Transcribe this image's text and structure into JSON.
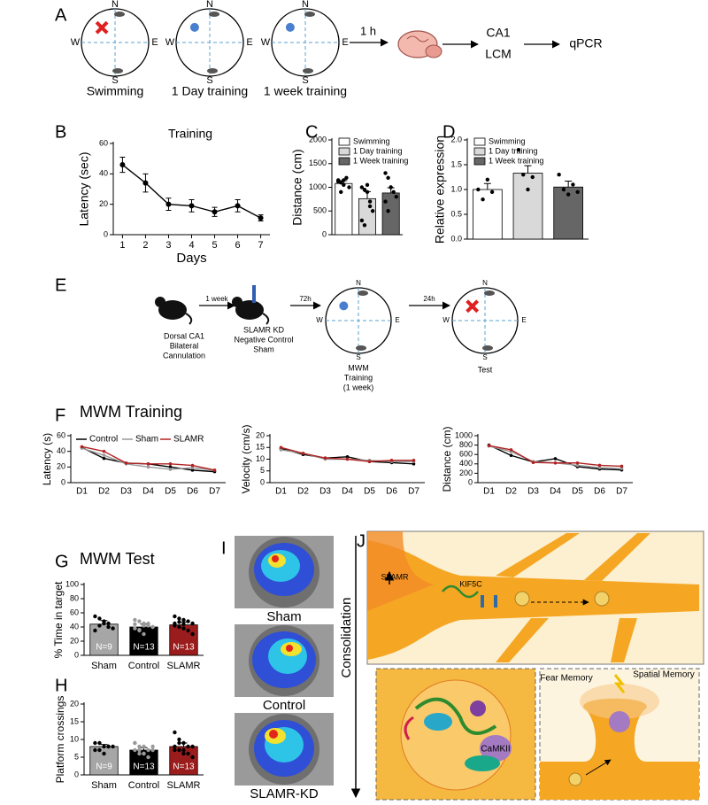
{
  "panel_labels": [
    "A",
    "B",
    "C",
    "D",
    "E",
    "F",
    "G",
    "H",
    "I",
    "J"
  ],
  "schematic": {
    "compass": [
      "N",
      "S",
      "W",
      "E"
    ],
    "mazes": [
      "Swimming",
      "1 Day training",
      "1 week training"
    ],
    "delay": "1 h",
    "steps": [
      "CA1",
      "LCM",
      "qPCR"
    ]
  },
  "protocol": {
    "surgery": [
      "Dorsal CA1",
      "Bilateral",
      "Cannulation"
    ],
    "groups": [
      "SLAMR KD",
      "Negative Control",
      "Sham"
    ],
    "training": [
      "MWM",
      "Training",
      "(1 week)"
    ],
    "test": "Test",
    "intervals": [
      "1 week",
      "72h",
      "24h"
    ]
  },
  "heatmaps": [
    "Sham",
    "Control",
    "SLAMR-KD"
  ],
  "model": {
    "axis": "Consolidation",
    "labels": [
      "SLAMR",
      "KIF5C",
      "CaMKII",
      "Fear Memory",
      "Spatial Memory"
    ]
  },
  "chart_data": [
    {
      "type": "line",
      "title": "Training",
      "xlabel": "Days",
      "ylabel": "Latency (sec)",
      "x": [
        1,
        2,
        3,
        4,
        5,
        6,
        7
      ],
      "values": [
        46,
        34,
        20,
        19,
        15,
        19,
        11
      ],
      "errors": [
        5,
        6,
        4,
        4,
        3,
        4,
        2
      ],
      "color": "#000000",
      "xlim": [
        0.6,
        7.4
      ],
      "xticks": [
        1,
        2,
        3,
        4,
        5,
        6,
        7
      ],
      "ylim": [
        0,
        60
      ],
      "yticks": [
        0,
        20,
        40,
        60
      ]
    },
    {
      "type": "bar",
      "ylabel": "Distance (cm)",
      "categories": [
        null
      ],
      "series": [
        {
          "name": "Swimming",
          "color": "#ffffff",
          "values": [
            1080
          ],
          "errors": [
            60
          ],
          "points": [
            [
              1150,
              1100,
              1050,
              1200,
              1000,
              1120,
              900,
              1150
            ]
          ]
        },
        {
          "name": "1 Day training",
          "color": "#d9d9d9",
          "values": [
            760
          ],
          "errors": [
            150
          ],
          "points": [
            [
              1000,
              950,
              900,
              600,
              500,
              300,
              200,
              1050,
              700
            ]
          ]
        },
        {
          "name": "1 Week training",
          "color": "#666666",
          "values": [
            880
          ],
          "errors": [
            110
          ],
          "points": [
            [
              1300,
              1200,
              1000,
              900,
              800,
              700,
              500,
              1000
            ]
          ]
        }
      ],
      "point_color": "#000000",
      "ylim": [
        0,
        2000
      ],
      "yticks": [
        0,
        500,
        1000,
        1500,
        2000
      ]
    },
    {
      "type": "bar",
      "ylabel": "Relative expression",
      "categories": [
        null
      ],
      "series": [
        {
          "name": "Swimming",
          "color": "#ffffff",
          "values": [
            1.0
          ],
          "errors": [
            0.12
          ],
          "points": [
            [
              1.0,
              0.8,
              1.2,
              0.95
            ]
          ]
        },
        {
          "name": "1 Day training",
          "color": "#d9d9d9",
          "values": [
            1.33
          ],
          "errors": [
            0.15
          ],
          "points": [
            [
              1.8,
              1.3,
              1.0,
              1.25
            ]
          ]
        },
        {
          "name": "1 Week training",
          "color": "#666666",
          "values": [
            1.05
          ],
          "errors": [
            0.12
          ],
          "points": [
            [
              1.3,
              1.0,
              0.9,
              1.1,
              0.95
            ]
          ]
        }
      ],
      "point_color": "#000000",
      "ylim": [
        0,
        2
      ],
      "yticks": [
        {
          "value": 0,
          "label": "0.0"
        },
        {
          "value": 0.5,
          "label": "0.5"
        },
        {
          "value": 1,
          "label": "1.0"
        },
        {
          "value": 1.5,
          "label": "1.5"
        },
        {
          "value": 2,
          "label": "2.0"
        }
      ]
    },
    {
      "type": "line",
      "title": "MWM Training",
      "ylabel": "Latency (s)",
      "categories": [
        "D1",
        "D2",
        "D3",
        "D4",
        "D5",
        "D6",
        "D7"
      ],
      "series": [
        {
          "name": "Control",
          "color": "#000000",
          "values": [
            45,
            31,
            25,
            24,
            20,
            16,
            14
          ]
        },
        {
          "name": "Sham",
          "color": "#999999",
          "values": [
            44,
            35,
            24,
            20,
            17,
            19,
            16
          ]
        },
        {
          "name": "SLAMR",
          "color": "#b22222",
          "values": [
            46,
            40,
            25,
            24,
            24,
            22,
            16
          ]
        }
      ],
      "legend": "top",
      "ylim": [
        0,
        60
      ],
      "yticks": [
        0,
        20,
        40,
        60
      ]
    },
    {
      "type": "line",
      "ylabel": "Velocity (cm/s)",
      "categories": [
        "D1",
        "D2",
        "D3",
        "D4",
        "D5",
        "D6",
        "D7"
      ],
      "series": [
        {
          "name": "Control",
          "color": "#000000",
          "values": [
            14.5,
            12,
            10.5,
            11,
            9,
            8.5,
            8
          ]
        },
        {
          "name": "Sham",
          "color": "#999999",
          "values": [
            14,
            12.5,
            10,
            10,
            9.5,
            9,
            9
          ]
        },
        {
          "name": "SLAMR",
          "color": "#b22222",
          "values": [
            15,
            12.5,
            10.5,
            10,
            9,
            9.5,
            9.5
          ]
        }
      ],
      "ylim": [
        0,
        20
      ],
      "yticks": [
        0,
        5,
        10,
        15,
        20
      ]
    },
    {
      "type": "line",
      "ylabel": "Distance (cm)",
      "categories": [
        "D1",
        "D2",
        "D3",
        "D4",
        "D5",
        "D6",
        "D7"
      ],
      "series": [
        {
          "name": "Control",
          "color": "#000000",
          "values": [
            800,
            580,
            440,
            510,
            340,
            290,
            270
          ]
        },
        {
          "name": "Sham",
          "color": "#999999",
          "values": [
            780,
            660,
            450,
            420,
            370,
            320,
            300
          ]
        },
        {
          "name": "SLAMR",
          "color": "#b22222",
          "values": [
            790,
            700,
            430,
            420,
            420,
            370,
            350
          ]
        }
      ],
      "ylim": [
        0,
        1000
      ],
      "yticks": [
        0,
        200,
        400,
        600,
        800,
        1000
      ]
    },
    {
      "type": "bar",
      "title": "MWM Test",
      "ylabel": "% Time in target",
      "categories": [
        "Sham",
        "Control",
        "SLAMR"
      ],
      "colors": [
        "#a6a6a6",
        "#000000",
        "#9b1c1c"
      ],
      "point_colors": [
        "#000000",
        "#999999",
        "#000000"
      ],
      "values": [
        44,
        40,
        43
      ],
      "errors": [
        5,
        4,
        4
      ],
      "annotations": [
        "N=9",
        "N=13",
        "N=13"
      ],
      "points": [
        [
          55,
          52,
          45,
          40,
          38,
          35,
          42,
          48,
          45
        ],
        [
          50,
          48,
          45,
          42,
          40,
          38,
          35,
          30,
          45,
          40,
          44,
          36,
          42
        ],
        [
          55,
          52,
          50,
          48,
          45,
          42,
          40,
          38,
          35,
          30,
          45,
          47,
          44
        ]
      ],
      "ylim": [
        0,
        100
      ],
      "yticks": [
        0,
        20,
        40,
        60,
        80,
        100
      ]
    },
    {
      "type": "bar",
      "ylabel": "Platform crossings",
      "categories": [
        "Sham",
        "Control",
        "SLAMR"
      ],
      "colors": [
        "#a6a6a6",
        "#000000",
        "#9b1c1c"
      ],
      "point_colors": [
        "#000000",
        "#999999",
        "#000000"
      ],
      "values": [
        8,
        7,
        8
      ],
      "errors": [
        0.6,
        0.7,
        1
      ],
      "annotations": [
        "N=9",
        "N=13",
        "N=13"
      ],
      "points": [
        [
          9,
          9,
          8,
          8,
          8,
          7,
          7,
          6,
          8
        ],
        [
          9,
          8,
          8,
          7,
          7,
          7,
          6,
          6,
          5,
          8,
          9,
          7,
          6
        ],
        [
          12,
          10,
          9,
          8,
          8,
          7,
          7,
          6,
          6,
          5,
          8,
          9,
          7
        ]
      ],
      "ylim": [
        0,
        20
      ],
      "yticks": [
        0,
        5,
        10,
        15,
        20
      ]
    }
  ]
}
